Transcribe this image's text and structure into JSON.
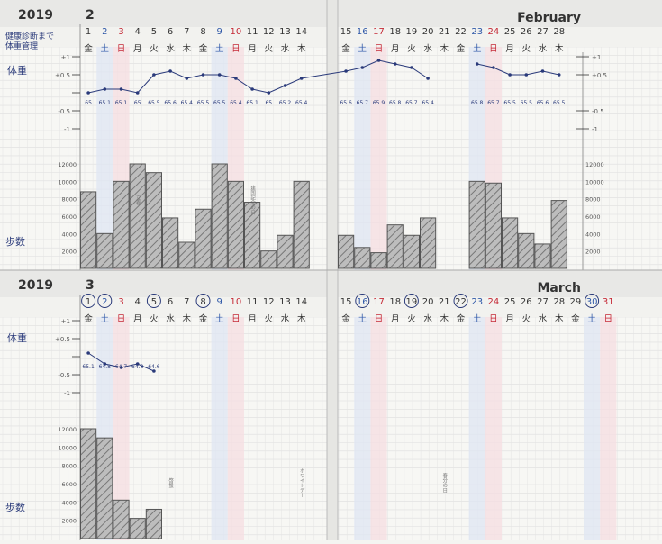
{
  "sections": [
    {
      "year": "2019",
      "month_num": "2",
      "month_name": "February",
      "day_numbers": [
        "1",
        "2",
        "3",
        "4",
        "5",
        "6",
        "7",
        "8",
        "9",
        "10",
        "11",
        "12",
        "13",
        "14",
        "15",
        "16",
        "17",
        "18",
        "19",
        "20",
        "21",
        "22",
        "23",
        "24",
        "25",
        "26",
        "27",
        "28"
      ],
      "weekdays": [
        "金",
        "土",
        "日",
        "月",
        "火",
        "水",
        "木",
        "金",
        "土",
        "日",
        "月",
        "火",
        "水",
        "木",
        "金",
        "土",
        "日",
        "月",
        "火",
        "水",
        "木",
        "金",
        "土",
        "日",
        "月",
        "火",
        "水",
        "木"
      ],
      "circled_days": [],
      "note_lines": [
        "健康診断まで",
        "体重管理"
      ],
      "weight_label": "体重",
      "steps_label": "歩数",
      "weight_axis_labels": [
        "+1",
        "+0.5",
        "0",
        "-0.5",
        "-1"
      ],
      "weight_axis_labels_right": [
        "+1",
        "+0.5",
        "-0.5",
        "-1"
      ],
      "steps_axis_labels": [
        "12000",
        "10000",
        "8000",
        "6000",
        "4000",
        "2000"
      ],
      "weight_values": [
        {
          "day": 1,
          "offset": 0.0,
          "label": "65"
        },
        {
          "day": 2,
          "offset": 0.1,
          "label": "65.1"
        },
        {
          "day": 3,
          "offset": 0.1,
          "label": "65.1"
        },
        {
          "day": 4,
          "offset": 0.0,
          "label": "65"
        },
        {
          "day": 5,
          "offset": 0.5,
          "label": "65.5"
        },
        {
          "day": 6,
          "offset": 0.6,
          "label": "65.6"
        },
        {
          "day": 7,
          "offset": 0.4,
          "label": "65.4"
        },
        {
          "day": 8,
          "offset": 0.5,
          "label": "65.5"
        },
        {
          "day": 9,
          "offset": 0.5,
          "label": "65.5"
        },
        {
          "day": 10,
          "offset": 0.4,
          "label": "65.4"
        },
        {
          "day": 11,
          "offset": 0.1,
          "label": "65.1"
        },
        {
          "day": 12,
          "offset": 0.0,
          "label": "65"
        },
        {
          "day": 13,
          "offset": 0.2,
          "label": "65.2"
        },
        {
          "day": 14,
          "offset": 0.4,
          "label": "65.4"
        },
        {
          "day": 15,
          "offset": 0.6,
          "label": "65.6"
        },
        {
          "day": 16,
          "offset": 0.7,
          "label": "65.7"
        },
        {
          "day": 17,
          "offset": 0.9,
          "label": "65.9"
        },
        {
          "day": 18,
          "offset": 0.8,
          "label": "65.8"
        },
        {
          "day": 19,
          "offset": 0.7,
          "label": "65.7"
        },
        {
          "day": 20,
          "offset": 0.4,
          "label": "65.4"
        },
        {
          "day": 23,
          "offset": 0.8,
          "label": "65.8"
        },
        {
          "day": 24,
          "offset": 0.7,
          "label": "65.7"
        },
        {
          "day": 25,
          "offset": 0.5,
          "label": "65.5"
        },
        {
          "day": 26,
          "offset": 0.5,
          "label": "65.5"
        },
        {
          "day": 27,
          "offset": 0.6,
          "label": "65.6"
        },
        {
          "day": 28,
          "offset": 0.5,
          "label": "65.5"
        }
      ],
      "steps_values": [
        {
          "day": 1,
          "steps": 8800
        },
        {
          "day": 2,
          "steps": 4000
        },
        {
          "day": 3,
          "steps": 10000
        },
        {
          "day": 4,
          "steps": 12000
        },
        {
          "day": 5,
          "steps": 11000
        },
        {
          "day": 6,
          "steps": 5800
        },
        {
          "day": 7,
          "steps": 3000
        },
        {
          "day": 8,
          "steps": 6800
        },
        {
          "day": 9,
          "steps": 12000
        },
        {
          "day": 10,
          "steps": 10000
        },
        {
          "day": 11,
          "steps": 7600
        },
        {
          "day": 12,
          "steps": 2000
        },
        {
          "day": 13,
          "steps": 3800
        },
        {
          "day": 14,
          "steps": 10000
        },
        {
          "day": 15,
          "steps": 3800
        },
        {
          "day": 16,
          "steps": 2400
        },
        {
          "day": 17,
          "steps": 1800
        },
        {
          "day": 18,
          "steps": 5000
        },
        {
          "day": 19,
          "steps": 3800
        },
        {
          "day": 20,
          "steps": 5800
        },
        {
          "day": 23,
          "steps": 10000
        },
        {
          "day": 24,
          "steps": 9800
        },
        {
          "day": 25,
          "steps": 5800
        },
        {
          "day": 26,
          "steps": 4000
        },
        {
          "day": 27,
          "steps": 2800
        },
        {
          "day": 28,
          "steps": 7800
        }
      ],
      "holidays": [
        {
          "day": 11,
          "text": "建国記念の日"
        },
        {
          "day": 4,
          "text": "立春"
        }
      ]
    },
    {
      "year": "2019",
      "month_num": "3",
      "month_name": "March",
      "day_numbers": [
        "1",
        "2",
        "3",
        "4",
        "5",
        "6",
        "7",
        "8",
        "9",
        "10",
        "11",
        "12",
        "13",
        "14",
        "15",
        "16",
        "17",
        "18",
        "19",
        "20",
        "21",
        "22",
        "23",
        "24",
        "25",
        "26",
        "27",
        "28",
        "29",
        "30",
        "31"
      ],
      "weekdays": [
        "金",
        "土",
        "日",
        "月",
        "火",
        "水",
        "木",
        "金",
        "土",
        "日",
        "月",
        "火",
        "水",
        "木",
        "金",
        "土",
        "日",
        "月",
        "火",
        "水",
        "木",
        "金",
        "土",
        "日",
        "月",
        "火",
        "水",
        "木",
        "金",
        "土",
        "日"
      ],
      "circled_days": [
        1,
        2,
        5,
        8,
        16,
        19,
        22,
        30
      ],
      "note_lines": [],
      "weight_label": "体重",
      "steps_label": "歩数",
      "weight_axis_labels": [
        "+1",
        "+0.5",
        "0",
        "-0.5",
        "-1"
      ],
      "weight_axis_labels_right": [],
      "steps_axis_labels": [
        "12000",
        "10000",
        "8000",
        "6000",
        "4000",
        "2000"
      ],
      "weight_values": [
        {
          "day": 1,
          "offset": 0.1,
          "label": "65.1"
        },
        {
          "day": 2,
          "offset": -0.2,
          "label": "64.8"
        },
        {
          "day": 3,
          "offset": -0.3,
          "label": "64.7"
        },
        {
          "day": 4,
          "offset": -0.2,
          "label": "64.8"
        },
        {
          "day": 5,
          "offset": -0.4,
          "label": "64.6"
        }
      ],
      "steps_values": [
        {
          "day": 1,
          "steps": 12000
        },
        {
          "day": 2,
          "steps": 11000
        },
        {
          "day": 3,
          "steps": 4200
        },
        {
          "day": 4,
          "steps": 2200
        },
        {
          "day": 5,
          "steps": 3200
        }
      ],
      "holidays": [
        {
          "day": 6,
          "text": "啓蟄"
        },
        {
          "day": 14,
          "text": "ホワイトデー"
        },
        {
          "day": 21,
          "text": "春分の日"
        }
      ]
    }
  ],
  "colors": {
    "blue_day": "#2f58a8",
    "red_day": "#c52a37",
    "blue_band": "#dfe5f3",
    "red_band": "#f5dde1",
    "ink": "#2a3a7a"
  }
}
